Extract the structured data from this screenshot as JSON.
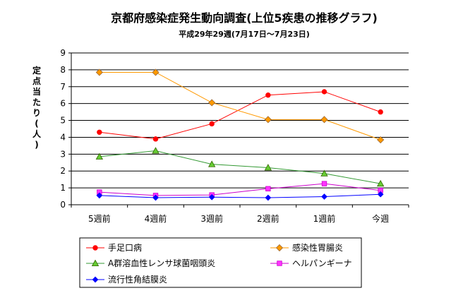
{
  "chart_data": {
    "type": "line",
    "title": "京都府感染症発生動向調査(上位5疾患の推移グラフ)",
    "subtitle": "平成29年29週(7月17日〜7月23日)",
    "ylabel": "定点当たり(人)",
    "xlabel": "",
    "categories": [
      "5週前",
      "4週前",
      "3週前",
      "2週前",
      "1週前",
      "今週"
    ],
    "ylim": [
      0,
      9
    ],
    "yticks": [
      0,
      1,
      2,
      3,
      4,
      5,
      6,
      7,
      8,
      9
    ],
    "grid": true,
    "legend": "bottom",
    "series": [
      {
        "name": "手足口病",
        "color": "#ff0000",
        "marker": "circle",
        "marker_fill": "#ff0000",
        "values": [
          4.3,
          3.9,
          4.8,
          6.5,
          6.7,
          5.5
        ]
      },
      {
        "name": "感染性胃腸炎",
        "color": "#ff9900",
        "marker": "diamond",
        "marker_fill": "#ff9900",
        "values": [
          7.85,
          7.85,
          6.05,
          5.05,
          5.05,
          3.85
        ]
      },
      {
        "name": "A群溶血性レンサ球菌咽頭炎",
        "color": "#339933",
        "marker": "triangle",
        "marker_fill": "#66cc33",
        "values": [
          2.85,
          3.2,
          2.4,
          2.2,
          1.85,
          1.25
        ]
      },
      {
        "name": "ヘルパンギーナ",
        "color": "#cc00cc",
        "marker": "square",
        "marker_fill": "#ff33ff",
        "values": [
          0.75,
          0.55,
          0.58,
          0.95,
          1.25,
          0.85
        ]
      },
      {
        "name": "流行性角結膜炎",
        "color": "#0000ff",
        "marker": "diamond-small",
        "marker_fill": "#0000ff",
        "values": [
          0.55,
          0.42,
          0.45,
          0.42,
          0.48,
          0.62
        ]
      }
    ]
  }
}
